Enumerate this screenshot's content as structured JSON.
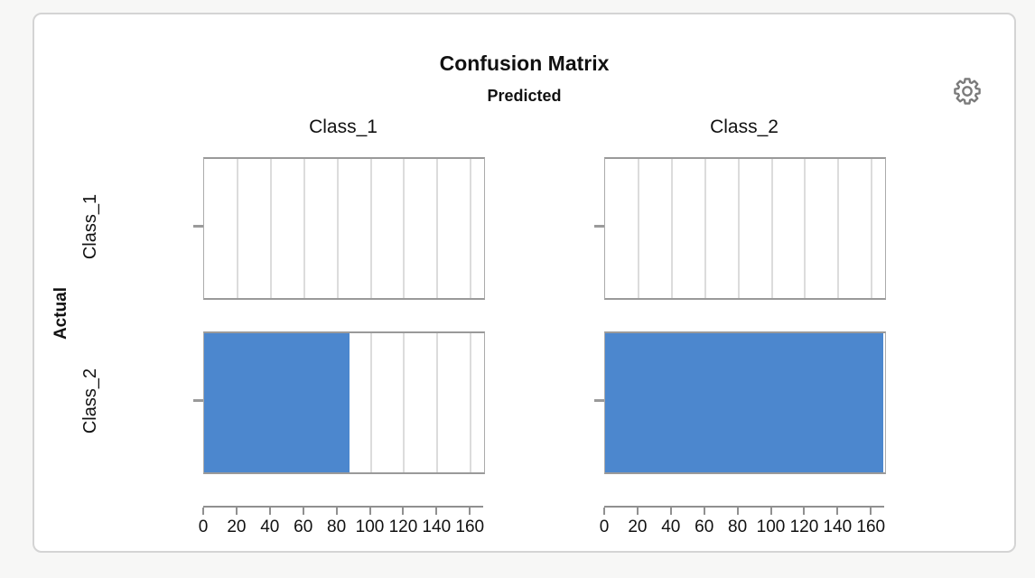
{
  "header": {
    "title": "Confusion Matrix"
  },
  "icons": {
    "settings": "gear-icon"
  },
  "colors": {
    "page_background": "#f7f7f6",
    "card_background": "#ffffff",
    "card_border": "#d4d4d4",
    "panel_border": "#9a9a9a",
    "grid_color": "#dcdcdc",
    "axis_color": "#909090",
    "gear_color": "#7a7a7a",
    "text_color": "#111111"
  },
  "chart_data": {
    "type": "bar",
    "orientation": "horizontal",
    "title": "Confusion Matrix",
    "facet_col_title": "Predicted",
    "facet_row_title": "Actual",
    "col_facets": [
      "Class_1",
      "Class_2"
    ],
    "row_facets": [
      "Class_1",
      "Class_2"
    ],
    "values_by_actual_predicted": [
      [
        0,
        0
      ],
      [
        87,
        167
      ]
    ],
    "x_ticks": [
      0,
      20,
      40,
      60,
      80,
      100,
      120,
      140,
      160
    ],
    "xlim": [
      0,
      168
    ],
    "grid": true,
    "legend": "none",
    "bar_color": "#4c87ce"
  }
}
